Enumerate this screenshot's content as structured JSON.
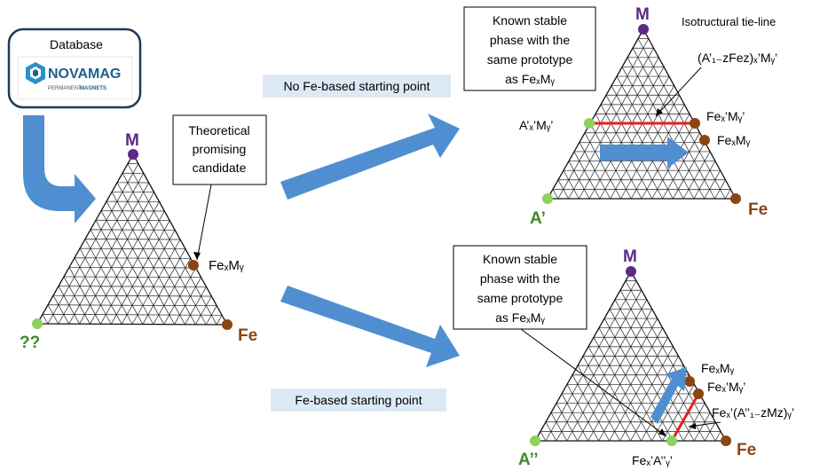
{
  "database": {
    "title": "Database",
    "logo_name": "NOVAMAG",
    "logo_subtitle_a": "PERMANENT",
    "logo_subtitle_b": "MAGNETS"
  },
  "colors": {
    "purple": "#5b2a86",
    "brown": "#8b4513",
    "green": "#8cd35a",
    "green_text": "#3f8a2a",
    "brown_text": "#8b4513",
    "arrow_blue": "#4f8fd1",
    "tie_red": "#e8201e",
    "label_bg": "#dde9f4"
  },
  "left_diagram": {
    "top_label": "M",
    "left_label": "??",
    "right_label": "Fe",
    "candidate_label": "FeₓMᵧ",
    "callout": [
      "Theoretical",
      "promising",
      "candidate"
    ]
  },
  "route_top": {
    "label": "No Fe-based starting point",
    "top_label": "M",
    "left_label": "A’",
    "right_label": "Fe",
    "callout": [
      "Known stable",
      "phase with the",
      "same prototype",
      "as FeₓMᵧ"
    ],
    "tie_line_title": "Isotructural tie-line",
    "tie_line_formula": "(A’₁₋zFez)ₓ’Mᵧ’",
    "left_end_label": "A’ₓ’Mᵧ’",
    "right_end_label": "Feₓ’Mᵧ’",
    "candidate_label": "FeₓMᵧ"
  },
  "route_bottom": {
    "label": "Fe-based starting point",
    "top_label": "M",
    "left_label": "A’’",
    "right_label": "Fe",
    "callout": [
      "Known stable",
      "phase with the",
      "same prototype",
      "as FeₓMᵧ"
    ],
    "candidate_label": "FeₓMᵧ",
    "upper_end_label": "Feₓ’Mᵧ’",
    "tie_line_formula": "Feₓ’(A’’₁₋zMz)ᵧ’",
    "lower_end_label": "Feₓ’A’’ᵧ’"
  }
}
